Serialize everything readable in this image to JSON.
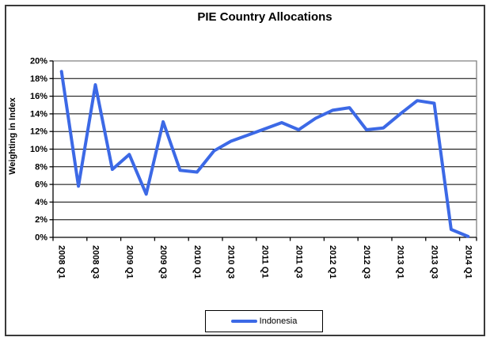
{
  "chart_data": {
    "type": "line",
    "title": "PIE Country Allocations",
    "xlabel": "",
    "ylabel": "Weighting in Index",
    "ylim": [
      0,
      20
    ],
    "ytick_step": 2,
    "ytick_labels": [
      "0%",
      "2%",
      "4%",
      "6%",
      "8%",
      "10%",
      "12%",
      "14%",
      "16%",
      "18%",
      "20%"
    ],
    "xtick_labels": [
      "2008 Q1",
      "2008 Q3",
      "2009 Q1",
      "2009 Q3",
      "2010 Q1",
      "2010 Q3",
      "2011 Q1",
      "2011 Q3",
      "2012 Q1",
      "2012 Q3",
      "2013 Q1",
      "2013 Q3",
      "2014 Q1"
    ],
    "xtick_every": 2,
    "categories": [
      "2008 Q1",
      "2008 Q2",
      "2008 Q3",
      "2008 Q4",
      "2009 Q1",
      "2009 Q2",
      "2009 Q3",
      "2009 Q4",
      "2010 Q1",
      "2010 Q2",
      "2010 Q3",
      "2010 Q4",
      "2011 Q1",
      "2011 Q2",
      "2011 Q3",
      "2011 Q4",
      "2012 Q1",
      "2012 Q2",
      "2012 Q3",
      "2012 Q4",
      "2013 Q1",
      "2013 Q2",
      "2013 Q3",
      "2013 Q4",
      "2014 Q1"
    ],
    "series": [
      {
        "name": "Indonesia",
        "color": "#3C69E6",
        "values": [
          18.8,
          5.8,
          17.3,
          7.7,
          9.4,
          4.9,
          13.1,
          7.6,
          7.4,
          9.8,
          10.9,
          11.6,
          12.3,
          13.0,
          12.2,
          13.5,
          14.4,
          14.7,
          12.2,
          12.4,
          14.0,
          15.5,
          15.2,
          0.9,
          0.1
        ]
      }
    ],
    "legend_position": "bottom",
    "grid": "horizontal"
  },
  "colors": {
    "series_blue": "#3C69E6",
    "gridline": "#000000",
    "plot_border": "#808080",
    "axis": "#000000",
    "outer_border": "#3A3A3A",
    "background": "#FFFFFF",
    "text": "#000000"
  }
}
